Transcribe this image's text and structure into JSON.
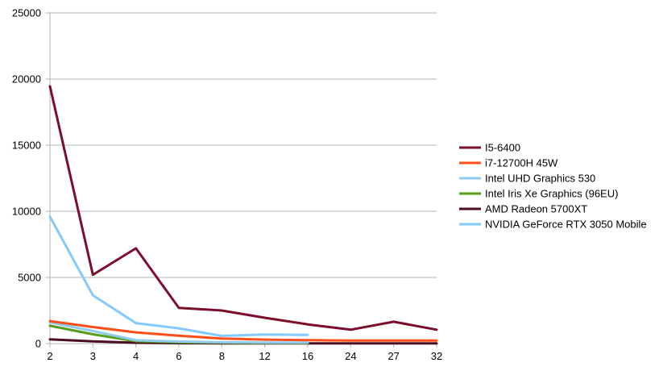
{
  "chart_data": {
    "type": "line",
    "title": "",
    "xlabel": "",
    "ylabel": "",
    "categories": [
      "2",
      "3",
      "4",
      "6",
      "8",
      "12",
      "16",
      "24",
      "27",
      "32"
    ],
    "ylim": [
      0,
      25000
    ],
    "yticks": [
      "0",
      "5000",
      "10000",
      "15000",
      "20000",
      "25000"
    ],
    "grid": "horizontal",
    "legend_position": "right",
    "series": [
      {
        "name": "I5-6400",
        "color": "#7b0e2a",
        "values": [
          19450,
          5200,
          7200,
          2700,
          2500,
          1950,
          1450,
          1050,
          1650,
          1050
        ]
      },
      {
        "name": "i7-12700H 45W",
        "color": "#ff4e17",
        "values": [
          1700,
          1250,
          850,
          600,
          380,
          300,
          260,
          230,
          230,
          230
        ]
      },
      {
        "name": "Intel UHD Graphics 530",
        "color": "#8fcbef",
        "values": [
          1600,
          950,
          250,
          150,
          100,
          80,
          70,
          null,
          null,
          null
        ]
      },
      {
        "name": "Intel Iris Xe Graphics (96EU)",
        "color": "#579d1c",
        "values": [
          1350,
          700,
          180,
          100,
          60,
          50,
          40,
          null,
          null,
          null
        ]
      },
      {
        "name": "AMD Radeon 5700XT",
        "color": "#4b0d22",
        "values": [
          320,
          170,
          60,
          30,
          20,
          15,
          12,
          10,
          10,
          10
        ]
      },
      {
        "name": "NVIDIA GeForce RTX 3050 Mobile",
        "color": "#83caff",
        "values": [
          9600,
          3650,
          1550,
          1150,
          580,
          690,
          650,
          null,
          null,
          null
        ]
      }
    ]
  }
}
